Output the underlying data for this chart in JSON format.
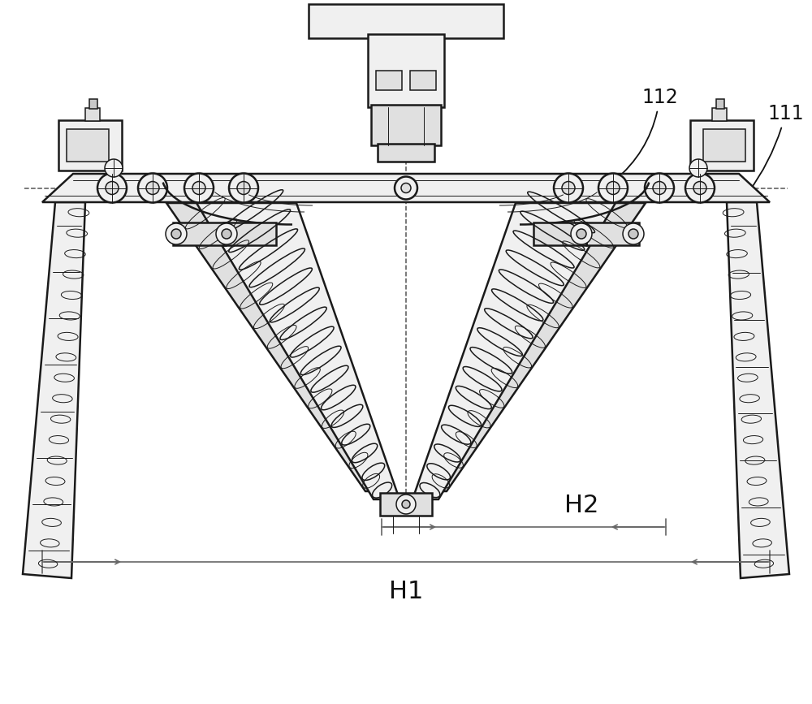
{
  "bg_color": "#ffffff",
  "lc": "#1a1a1a",
  "dc": "#555555",
  "fc_light": "#f0f0f0",
  "fc_mid": "#e0e0e0",
  "fc_dark": "#c8c8c8",
  "dimc": "#666666",
  "label_112": "112",
  "label_111": "111",
  "label_H1": "H1",
  "label_H2": "H2",
  "fig_width": 10.0,
  "fig_height": 8.67,
  "dpi": 100
}
